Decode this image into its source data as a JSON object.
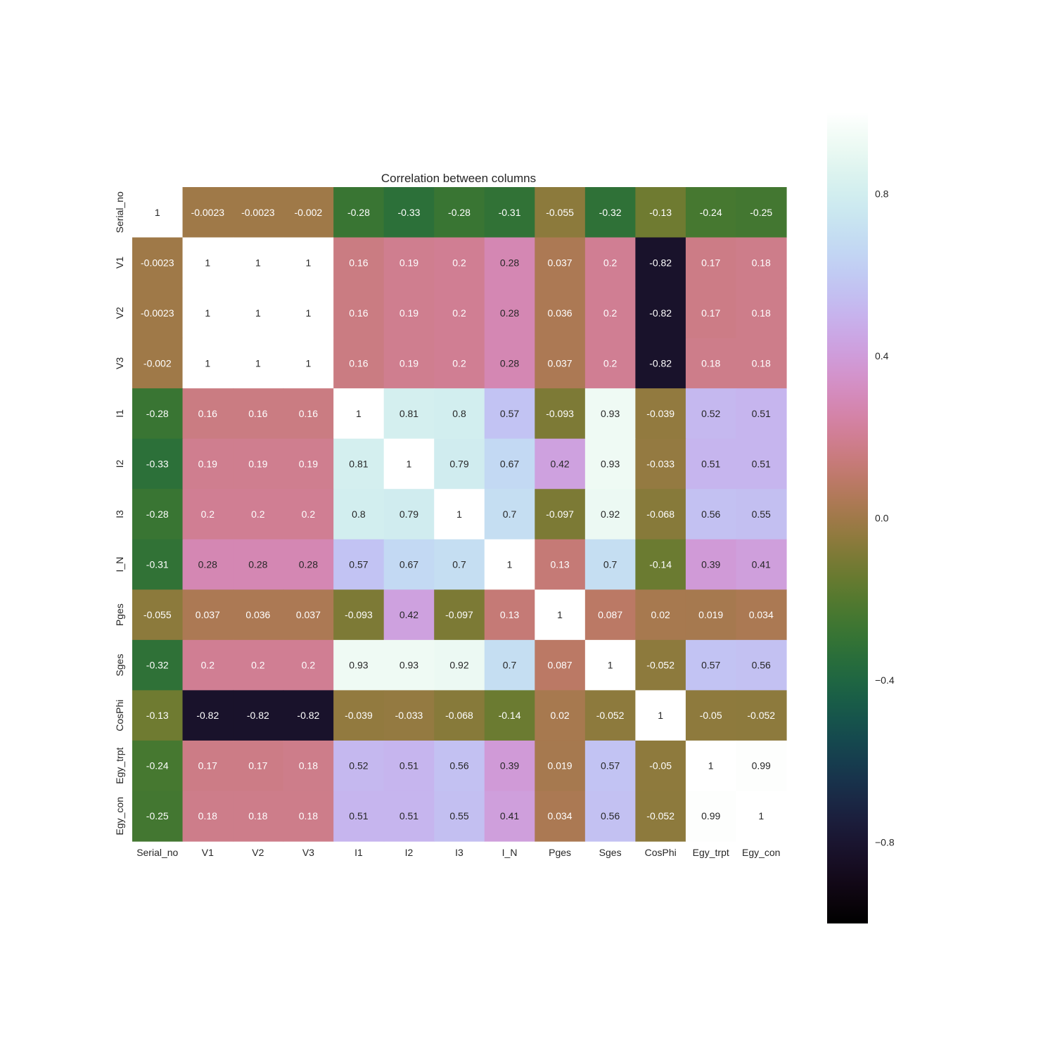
{
  "chart_data": {
    "type": "heatmap",
    "title": "Correlation between columns",
    "x_labels": [
      "Serial_no",
      "V1",
      "V2",
      "V3",
      "I1",
      "I2",
      "I3",
      "I_N",
      "Pges",
      "Sges",
      "CosPhi",
      "Egy_trpt",
      "Egy_con"
    ],
    "y_labels": [
      "Serial_no",
      "V1",
      "V2",
      "V3",
      "I1",
      "I2",
      "I3",
      "I_N",
      "Pges",
      "Sges",
      "CosPhi",
      "Egy_trpt",
      "Egy_con"
    ],
    "values": [
      [
        "1",
        "-0.0023",
        "-0.0023",
        "-0.002",
        "-0.28",
        "-0.33",
        "-0.28",
        "-0.31",
        "-0.055",
        "-0.32",
        "-0.13",
        "-0.24",
        "-0.25"
      ],
      [
        "-0.0023",
        "1",
        "1",
        "1",
        "0.16",
        "0.19",
        "0.2",
        "0.28",
        "0.037",
        "0.2",
        "-0.82",
        "0.17",
        "0.18"
      ],
      [
        "-0.0023",
        "1",
        "1",
        "1",
        "0.16",
        "0.19",
        "0.2",
        "0.28",
        "0.036",
        "0.2",
        "-0.82",
        "0.17",
        "0.18"
      ],
      [
        "-0.002",
        "1",
        "1",
        "1",
        "0.16",
        "0.19",
        "0.2",
        "0.28",
        "0.037",
        "0.2",
        "-0.82",
        "0.18",
        "0.18"
      ],
      [
        "-0.28",
        "0.16",
        "0.16",
        "0.16",
        "1",
        "0.81",
        "0.8",
        "0.57",
        "-0.093",
        "0.93",
        "-0.039",
        "0.52",
        "0.51"
      ],
      [
        "-0.33",
        "0.19",
        "0.19",
        "0.19",
        "0.81",
        "1",
        "0.79",
        "0.67",
        "0.42",
        "0.93",
        "-0.033",
        "0.51",
        "0.51"
      ],
      [
        "-0.28",
        "0.2",
        "0.2",
        "0.2",
        "0.8",
        "0.79",
        "1",
        "0.7",
        "-0.097",
        "0.92",
        "-0.068",
        "0.56",
        "0.55"
      ],
      [
        "-0.31",
        "0.28",
        "0.28",
        "0.28",
        "0.57",
        "0.67",
        "0.7",
        "1",
        "0.13",
        "0.7",
        "-0.14",
        "0.39",
        "0.41"
      ],
      [
        "-0.055",
        "0.037",
        "0.036",
        "0.037",
        "-0.093",
        "0.42",
        "-0.097",
        "0.13",
        "1",
        "0.087",
        "0.02",
        "0.019",
        "0.034"
      ],
      [
        "-0.32",
        "0.2",
        "0.2",
        "0.2",
        "0.93",
        "0.93",
        "0.92",
        "0.7",
        "0.087",
        "1",
        "-0.052",
        "0.57",
        "0.56"
      ],
      [
        "-0.13",
        "-0.82",
        "-0.82",
        "-0.82",
        "-0.039",
        "-0.033",
        "-0.068",
        "-0.14",
        "0.02",
        "-0.052",
        "1",
        "-0.05",
        "-0.052"
      ],
      [
        "-0.24",
        "0.17",
        "0.17",
        "0.18",
        "0.52",
        "0.51",
        "0.56",
        "0.39",
        "0.019",
        "0.57",
        "-0.05",
        "1",
        "0.99"
      ],
      [
        "-0.25",
        "0.18",
        "0.18",
        "0.18",
        "0.51",
        "0.51",
        "0.55",
        "0.41",
        "0.034",
        "0.56",
        "-0.052",
        "0.99",
        "1"
      ]
    ],
    "colorscale": "cubehelix",
    "vmin": -1,
    "vmax": 1,
    "colorbar_ticks": [
      "0.8",
      "0.4",
      "0.0",
      "−0.4",
      "−0.8"
    ],
    "colorbar_tick_values": [
      0.8,
      0.4,
      0.0,
      -0.4,
      -0.8
    ],
    "grid": false,
    "legend": "colorbar-right"
  }
}
